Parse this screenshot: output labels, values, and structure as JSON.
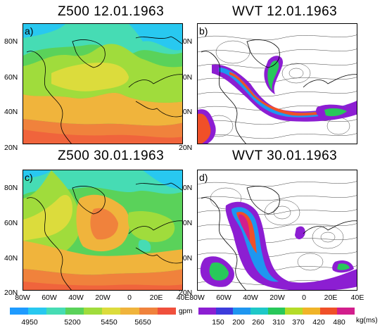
{
  "panels": [
    {
      "id": "a",
      "label": "a)",
      "title": "Z500  12.01.1963",
      "field": "Z500"
    },
    {
      "id": "b",
      "label": "b)",
      "title": "WVT  12.01.1963",
      "field": "WVT"
    },
    {
      "id": "c",
      "label": "c)",
      "title": "Z500  30.01.1963",
      "field": "Z500"
    },
    {
      "id": "d",
      "label": "d)",
      "title": "WVT  30.01.1963",
      "field": "WVT"
    }
  ],
  "latitude_ticks": [
    "80N",
    "60N",
    "40N",
    "20N"
  ],
  "longitude_ticks": [
    "80W",
    "60W",
    "40W",
    "20W",
    "0",
    "20E",
    "40E"
  ],
  "colorbars": {
    "z500": {
      "unit": "gpm",
      "labels": [
        "4950",
        "5200",
        "5450",
        "5650"
      ],
      "colors": [
        "#1e9bff",
        "#28c8f0",
        "#46dcb4",
        "#5ad25a",
        "#a0dc3c",
        "#dcdc3c",
        "#f0b43c",
        "#f0823c",
        "#f0503c"
      ]
    },
    "wvt": {
      "unit": "kg(ms)",
      "labels": [
        "150",
        "200",
        "260",
        "310",
        "370",
        "420",
        "480"
      ],
      "colors": [
        "#8c1ed2",
        "#3c3cdc",
        "#1e96f0",
        "#1ec8c8",
        "#28c85a",
        "#b4dc28",
        "#f0b428",
        "#f05028",
        "#d21e8c"
      ]
    }
  }
}
